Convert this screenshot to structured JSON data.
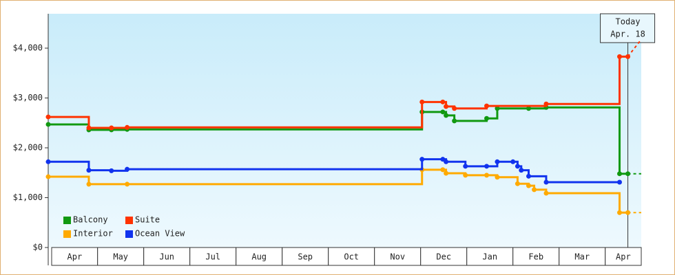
{
  "chart_data": {
    "type": "step-line",
    "categories": [
      "Apr",
      "May",
      "Jun",
      "Jul",
      "Aug",
      "Sep",
      "Oct",
      "Nov",
      "Dec",
      "Jan",
      "Feb",
      "Mar",
      "Apr"
    ],
    "xlim": [
      -0.07,
      12.78
    ],
    "ylim": [
      0,
      4690
    ],
    "yticks": [
      {
        "value": 0,
        "label": "$0"
      },
      {
        "value": 1000,
        "label": "$1,000"
      },
      {
        "value": 2000,
        "label": "$2,000"
      },
      {
        "value": 3000,
        "label": "$3,000"
      },
      {
        "value": 4000,
        "label": "$4,000"
      }
    ],
    "today": {
      "label": "Today",
      "date": "Apr. 18",
      "x": 12.49
    },
    "legend": "bottom-left",
    "series": [
      {
        "name": "Balcony",
        "color": "#119911",
        "x": [
          -0.07,
          0.81,
          1.3,
          1.64,
          8.03,
          8.48,
          8.55,
          8.73,
          9.43,
          9.66,
          10.34,
          10.72,
          12.31,
          12.49
        ],
        "values": [
          2470,
          2360,
          2360,
          2370,
          2720,
          2720,
          2650,
          2540,
          2590,
          2790,
          2790,
          2810,
          1480,
          1480
        ]
      },
      {
        "name": "Suite",
        "color": "#ff3300",
        "x": [
          -0.07,
          0.81,
          1.3,
          1.64,
          8.03,
          8.48,
          8.55,
          8.73,
          9.43,
          10.72,
          12.31,
          12.49
        ],
        "values": [
          2620,
          2400,
          2400,
          2410,
          2920,
          2920,
          2830,
          2790,
          2840,
          2880,
          3830,
          3830
        ]
      },
      {
        "name": "Interior",
        "color": "#ffaa00",
        "x": [
          -0.07,
          0.81,
          1.64,
          8.03,
          8.48,
          8.55,
          8.97,
          9.43,
          9.66,
          10.1,
          10.34,
          10.46,
          10.72,
          12.31,
          12.49
        ],
        "values": [
          1420,
          1270,
          1270,
          1560,
          1560,
          1490,
          1450,
          1450,
          1410,
          1280,
          1240,
          1160,
          1090,
          700,
          700
        ]
      },
      {
        "name": "Ocean View",
        "color": "#1133ee",
        "x": [
          -0.07,
          0.81,
          1.3,
          1.64,
          8.03,
          8.48,
          8.55,
          8.97,
          9.43,
          9.66,
          10.0,
          10.1,
          10.18,
          10.34,
          10.72,
          12.31
        ],
        "values": [
          1720,
          1550,
          1540,
          1570,
          1770,
          1770,
          1720,
          1630,
          1630,
          1720,
          1720,
          1630,
          1550,
          1430,
          1310,
          1310
        ]
      }
    ]
  }
}
